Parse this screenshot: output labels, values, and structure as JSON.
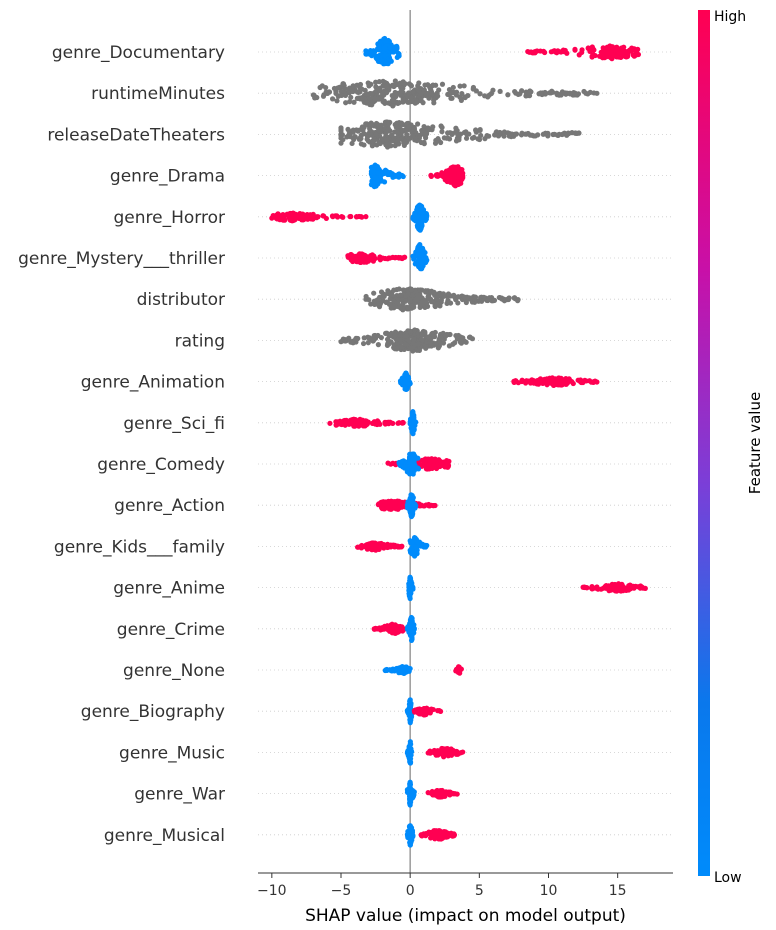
{
  "chart_data": {
    "type": "scatter",
    "subtype": "shap-beeswarm-summary",
    "title": "",
    "xlabel": "SHAP value (impact on model output)",
    "ylabel": "",
    "xlim": [
      -11,
      19
    ],
    "xticks": [
      -10,
      -5,
      0,
      5,
      10,
      15
    ],
    "xtick_labels": [
      "−10",
      "−5",
      "0",
      "5",
      "10",
      "15"
    ],
    "grid": "dotted horizontal row guides",
    "colors": {
      "low": "#008bfb",
      "high": "#ff0052",
      "no_value": "#777777",
      "zero_line": "#999999"
    },
    "colorbar": {
      "title": "Feature value",
      "high_label": "High",
      "low_label": "Low",
      "placement": "right"
    },
    "features": [
      {
        "name": "genre_Documentary",
        "clusters": [
          {
            "color": "low",
            "start": -3.2,
            "end": -0.8,
            "peak": -1.8,
            "w": 14,
            "n": 140
          },
          {
            "color": "high",
            "start": 8.5,
            "end": 16.5,
            "peak": 14.5,
            "w": 7,
            "n": 140
          }
        ]
      },
      {
        "name": "runtimeMinutes",
        "clusters": [
          {
            "color": "none",
            "start": -7,
            "end": 13.5,
            "peak": -1.5,
            "w": 13,
            "n": 320
          }
        ]
      },
      {
        "name": "releaseDateTheaters",
        "clusters": [
          {
            "color": "none",
            "start": -5,
            "end": 12.2,
            "peak": -1.5,
            "w": 13,
            "n": 320
          }
        ]
      },
      {
        "name": "genre_Drama",
        "clusters": [
          {
            "color": "low",
            "start": -2.8,
            "end": -0.5,
            "peak": -2.5,
            "w": 12,
            "n": 90
          },
          {
            "color": "high",
            "start": 1.5,
            "end": 3.8,
            "peak": 3.3,
            "w": 11,
            "n": 110
          }
        ]
      },
      {
        "name": "genre_Horror",
        "clusters": [
          {
            "color": "high",
            "start": -10,
            "end": -3.2,
            "peak": -8.5,
            "w": 4,
            "n": 120
          },
          {
            "color": "low",
            "start": 0.2,
            "end": 1.2,
            "peak": 0.7,
            "w": 14,
            "n": 120
          }
        ]
      },
      {
        "name": "genre_Mystery___thriller",
        "clusters": [
          {
            "color": "high",
            "start": -4.5,
            "end": -0.4,
            "peak": -3.5,
            "w": 5,
            "n": 90
          },
          {
            "color": "low",
            "start": 0.2,
            "end": 1.2,
            "peak": 0.7,
            "w": 14,
            "n": 120
          }
        ]
      },
      {
        "name": "distributor",
        "clusters": [
          {
            "color": "none",
            "start": -3.2,
            "end": 7.8,
            "peak": -0.3,
            "w": 11,
            "n": 260
          }
        ]
      },
      {
        "name": "rating",
        "clusters": [
          {
            "color": "none",
            "start": -5,
            "end": 4.5,
            "peak": 0.3,
            "w": 11,
            "n": 240
          }
        ]
      },
      {
        "name": "genre_Animation",
        "clusters": [
          {
            "color": "low",
            "start": -0.7,
            "end": 0,
            "peak": -0.3,
            "w": 9,
            "n": 60
          },
          {
            "color": "high",
            "start": 7.5,
            "end": 13.5,
            "peak": 10.5,
            "w": 4,
            "n": 120
          }
        ]
      },
      {
        "name": "genre_Sci_fi",
        "clusters": [
          {
            "color": "high",
            "start": -5.8,
            "end": -0.5,
            "peak": -4,
            "w": 4,
            "n": 100
          },
          {
            "color": "low",
            "start": 0,
            "end": 0.4,
            "peak": 0.2,
            "w": 12,
            "n": 70
          }
        ]
      },
      {
        "name": "genre_Comedy",
        "clusters": [
          {
            "color": "high",
            "start": -1.6,
            "end": 2.8,
            "peak": 1.5,
            "w": 6,
            "n": 120
          },
          {
            "color": "low",
            "start": -0.8,
            "end": 0.6,
            "peak": 0.1,
            "w": 12,
            "n": 110
          }
        ]
      },
      {
        "name": "genre_Action",
        "clusters": [
          {
            "color": "high",
            "start": -2.3,
            "end": 1.8,
            "peak": -1.2,
            "w": 5,
            "n": 120
          },
          {
            "color": "low",
            "start": -0.2,
            "end": 0.4,
            "peak": 0.1,
            "w": 12,
            "n": 80
          }
        ]
      },
      {
        "name": "genre_Kids___family",
        "clusters": [
          {
            "color": "high",
            "start": -3.8,
            "end": -0.6,
            "peak": -2.5,
            "w": 4,
            "n": 90
          },
          {
            "color": "low",
            "start": 0,
            "end": 1.2,
            "peak": 0.3,
            "w": 10,
            "n": 70
          }
        ]
      },
      {
        "name": "genre_Anime",
        "clusters": [
          {
            "color": "low",
            "start": -0.1,
            "end": 0.2,
            "peak": 0,
            "w": 12,
            "n": 50
          },
          {
            "color": "high",
            "start": 12.5,
            "end": 17,
            "peak": 15,
            "w": 4,
            "n": 90
          }
        ]
      },
      {
        "name": "genre_Crime",
        "clusters": [
          {
            "color": "high",
            "start": -2.6,
            "end": -0.4,
            "peak": -1.2,
            "w": 5,
            "n": 80
          },
          {
            "color": "low",
            "start": -0.2,
            "end": 0.3,
            "peak": 0.1,
            "w": 12,
            "n": 70
          }
        ]
      },
      {
        "name": "genre_None",
        "clusters": [
          {
            "color": "low",
            "start": -1.8,
            "end": 0,
            "peak": -0.5,
            "w": 4,
            "n": 60
          },
          {
            "color": "high",
            "start": 3.3,
            "end": 3.7,
            "peak": 3.5,
            "w": 5,
            "n": 14
          }
        ]
      },
      {
        "name": "genre_Biography",
        "clusters": [
          {
            "color": "low",
            "start": -0.2,
            "end": 0.1,
            "peak": 0,
            "w": 12,
            "n": 50
          },
          {
            "color": "high",
            "start": 0.3,
            "end": 2.2,
            "peak": 1,
            "w": 4,
            "n": 60
          }
        ]
      },
      {
        "name": "genre_Music",
        "clusters": [
          {
            "color": "low",
            "start": -0.2,
            "end": 0.1,
            "peak": 0,
            "w": 12,
            "n": 50
          },
          {
            "color": "high",
            "start": 1.3,
            "end": 3.8,
            "peak": 2.5,
            "w": 5,
            "n": 70
          }
        ]
      },
      {
        "name": "genre_War",
        "clusters": [
          {
            "color": "low",
            "start": -0.2,
            "end": 0.3,
            "peak": 0,
            "w": 12,
            "n": 50
          },
          {
            "color": "high",
            "start": 1.3,
            "end": 3.4,
            "peak": 2.2,
            "w": 4,
            "n": 60
          }
        ]
      },
      {
        "name": "genre_Musical",
        "clusters": [
          {
            "color": "low",
            "start": -0.2,
            "end": 0.2,
            "peak": 0,
            "w": 12,
            "n": 50
          },
          {
            "color": "high",
            "start": 0.8,
            "end": 3.2,
            "peak": 2,
            "w": 5,
            "n": 90
          }
        ]
      }
    ]
  }
}
